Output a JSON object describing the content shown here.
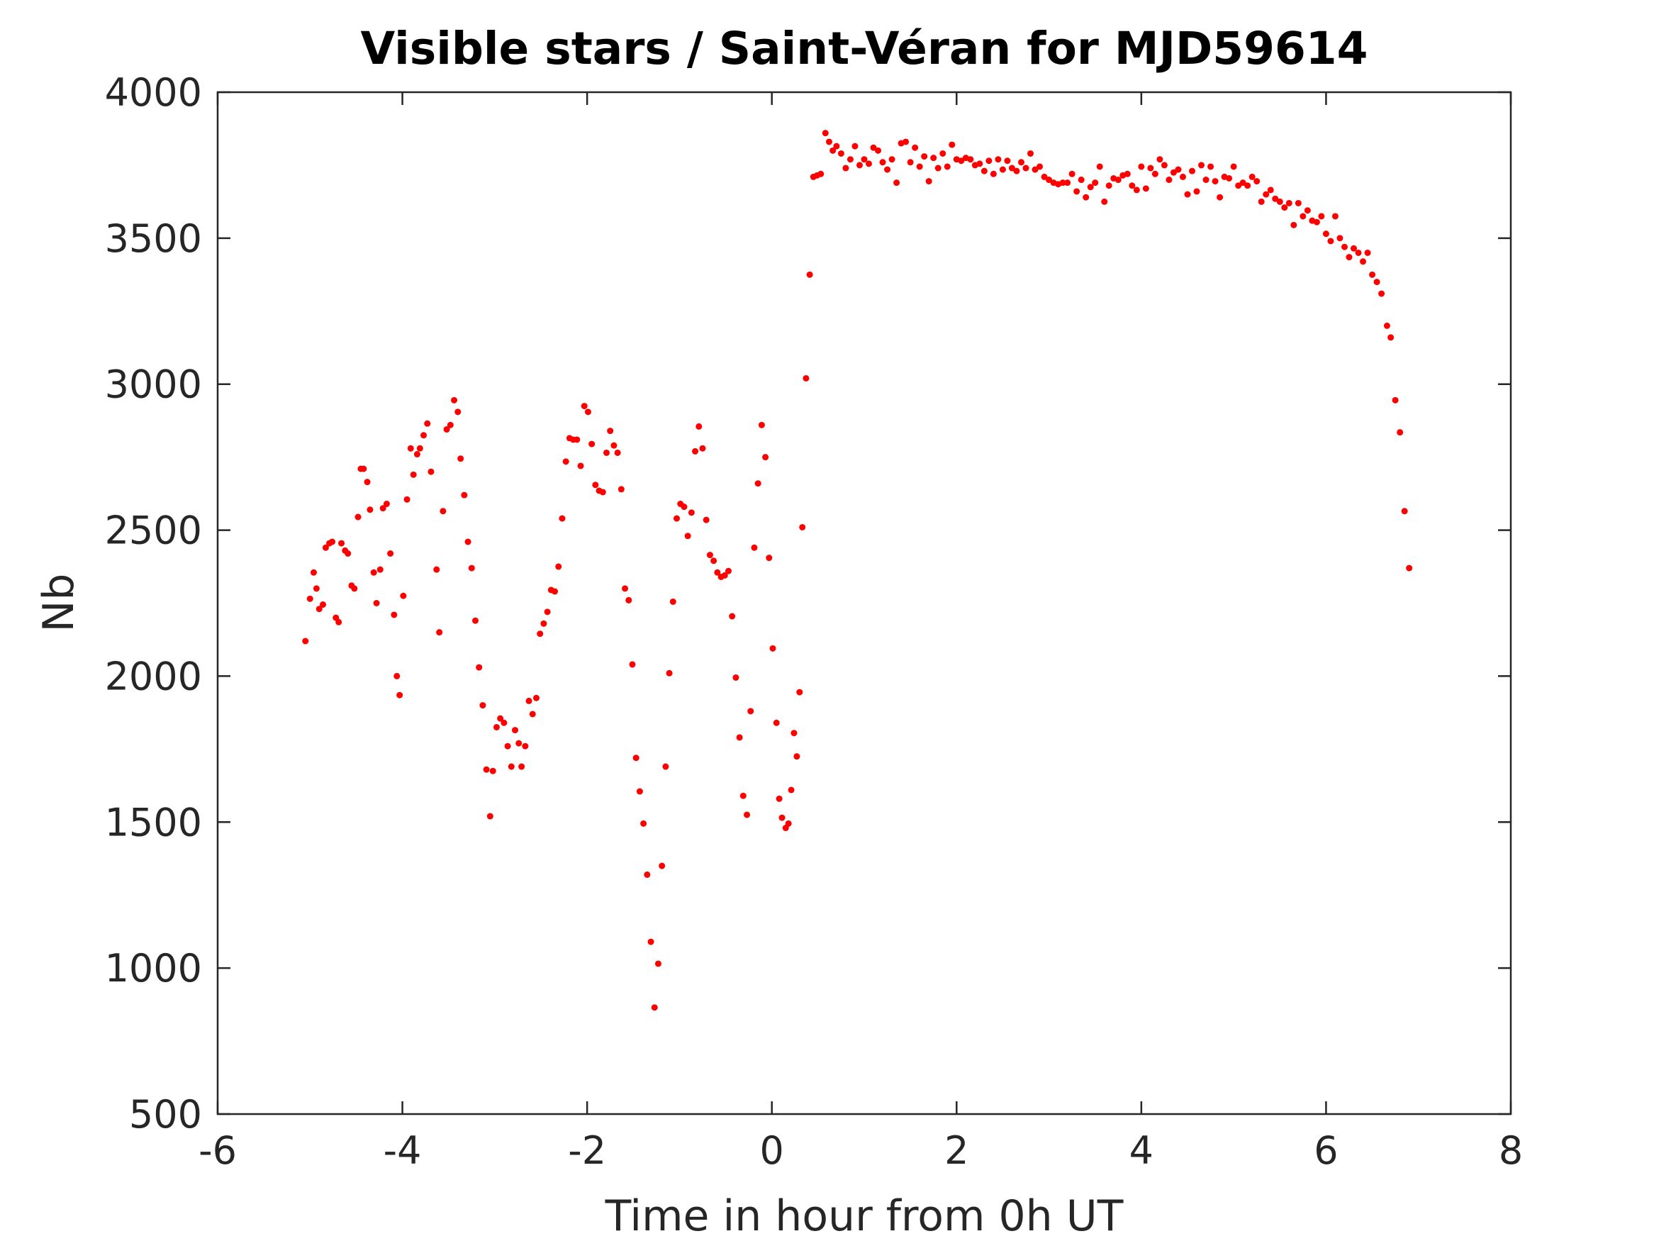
{
  "chart_data": {
    "type": "scatter",
    "title": "Visible stars / Saint-Véran for MJD59614",
    "xlabel": "Time in hour from 0h UT",
    "ylabel": "Nb",
    "xlim": [
      -6,
      8
    ],
    "ylim": [
      500,
      4000
    ],
    "xticks": [
      -6,
      -4,
      -2,
      0,
      2,
      4,
      6,
      8
    ],
    "yticks": [
      500,
      1000,
      1500,
      2000,
      2500,
      3000,
      3500,
      4000
    ],
    "grid": false,
    "legend": "none",
    "marker_color": "#ff0000",
    "series": [
      {
        "points": [
          [
            -5.05,
            2120
          ],
          [
            -5.0,
            2265
          ],
          [
            -4.96,
            2355
          ],
          [
            -4.93,
            2300
          ],
          [
            -4.9,
            2230
          ],
          [
            -4.86,
            2245
          ],
          [
            -4.83,
            2440
          ],
          [
            -4.79,
            2455
          ],
          [
            -4.76,
            2460
          ],
          [
            -4.72,
            2200
          ],
          [
            -4.69,
            2185
          ],
          [
            -4.66,
            2455
          ],
          [
            -4.62,
            2430
          ],
          [
            -4.59,
            2420
          ],
          [
            -4.55,
            2310
          ],
          [
            -4.52,
            2300
          ],
          [
            -4.48,
            2545
          ],
          [
            -4.45,
            2710
          ],
          [
            -4.42,
            2710
          ],
          [
            -4.38,
            2665
          ],
          [
            -4.35,
            2570
          ],
          [
            -4.31,
            2355
          ],
          [
            -4.28,
            2250
          ],
          [
            -4.24,
            2365
          ],
          [
            -4.21,
            2575
          ],
          [
            -4.17,
            2590
          ],
          [
            -4.13,
            2420
          ],
          [
            -4.09,
            2210
          ],
          [
            -4.06,
            2000
          ],
          [
            -4.03,
            1935
          ],
          [
            -3.99,
            2275
          ],
          [
            -3.95,
            2605
          ],
          [
            -3.91,
            2780
          ],
          [
            -3.88,
            2690
          ],
          [
            -3.84,
            2760
          ],
          [
            -3.81,
            2780
          ],
          [
            -3.77,
            2825
          ],
          [
            -3.73,
            2865
          ],
          [
            -3.69,
            2700
          ],
          [
            -3.63,
            2365
          ],
          [
            -3.6,
            2150
          ],
          [
            -3.56,
            2565
          ],
          [
            -3.52,
            2845
          ],
          [
            -3.48,
            2860
          ],
          [
            -3.44,
            2945
          ],
          [
            -3.4,
            2905
          ],
          [
            -3.37,
            2745
          ],
          [
            -3.33,
            2620
          ],
          [
            -3.29,
            2460
          ],
          [
            -3.25,
            2370
          ],
          [
            -3.21,
            2190
          ],
          [
            -3.17,
            2030
          ],
          [
            -3.13,
            1900
          ],
          [
            -3.09,
            1680
          ],
          [
            -3.05,
            1520
          ],
          [
            -3.02,
            1675
          ],
          [
            -2.98,
            1825
          ],
          [
            -2.94,
            1855
          ],
          [
            -2.9,
            1840
          ],
          [
            -2.86,
            1760
          ],
          [
            -2.82,
            1690
          ],
          [
            -2.78,
            1815
          ],
          [
            -2.74,
            1770
          ],
          [
            -2.71,
            1690
          ],
          [
            -2.67,
            1760
          ],
          [
            -2.63,
            1915
          ],
          [
            -2.59,
            1870
          ],
          [
            -2.55,
            1925
          ],
          [
            -2.51,
            2145
          ],
          [
            -2.47,
            2180
          ],
          [
            -2.43,
            2220
          ],
          [
            -2.39,
            2295
          ],
          [
            -2.35,
            2290
          ],
          [
            -2.31,
            2375
          ],
          [
            -2.27,
            2540
          ],
          [
            -2.23,
            2735
          ],
          [
            -2.19,
            2815
          ],
          [
            -2.15,
            2810
          ],
          [
            -2.11,
            2810
          ],
          [
            -2.07,
            2720
          ],
          [
            -2.03,
            2925
          ],
          [
            -1.99,
            2905
          ],
          [
            -1.95,
            2795
          ],
          [
            -1.91,
            2655
          ],
          [
            -1.87,
            2635
          ],
          [
            -1.83,
            2630
          ],
          [
            -1.79,
            2765
          ],
          [
            -1.75,
            2840
          ],
          [
            -1.71,
            2790
          ],
          [
            -1.67,
            2765
          ],
          [
            -1.63,
            2640
          ],
          [
            -1.59,
            2300
          ],
          [
            -1.55,
            2260
          ],
          [
            -1.51,
            2040
          ],
          [
            -1.47,
            1720
          ],
          [
            -1.43,
            1605
          ],
          [
            -1.39,
            1495
          ],
          [
            -1.35,
            1320
          ],
          [
            -1.31,
            1090
          ],
          [
            -1.27,
            865
          ],
          [
            -1.23,
            1015
          ],
          [
            -1.19,
            1350
          ],
          [
            -1.15,
            1690
          ],
          [
            -1.11,
            2010
          ],
          [
            -1.07,
            2255
          ],
          [
            -1.03,
            2540
          ],
          [
            -0.99,
            2590
          ],
          [
            -0.95,
            2580
          ],
          [
            -0.91,
            2480
          ],
          [
            -0.87,
            2560
          ],
          [
            -0.83,
            2770
          ],
          [
            -0.79,
            2855
          ],
          [
            -0.75,
            2780
          ],
          [
            -0.71,
            2535
          ],
          [
            -0.67,
            2415
          ],
          [
            -0.63,
            2395
          ],
          [
            -0.59,
            2355
          ],
          [
            -0.55,
            2340
          ],
          [
            -0.51,
            2345
          ],
          [
            -0.47,
            2360
          ],
          [
            -0.43,
            2205
          ],
          [
            -0.39,
            1995
          ],
          [
            -0.35,
            1790
          ],
          [
            -0.31,
            1590
          ],
          [
            -0.27,
            1525
          ],
          [
            -0.23,
            1880
          ],
          [
            -0.19,
            2440
          ],
          [
            -0.15,
            2660
          ],
          [
            -0.11,
            2860
          ],
          [
            -0.07,
            2750
          ],
          [
            -0.03,
            2405
          ],
          [
            0.01,
            2095
          ],
          [
            0.05,
            1840
          ],
          [
            0.08,
            1580
          ],
          [
            0.11,
            1515
          ],
          [
            0.15,
            1480
          ],
          [
            0.18,
            1495
          ],
          [
            0.21,
            1610
          ],
          [
            0.24,
            1805
          ],
          [
            0.27,
            1725
          ],
          [
            0.3,
            1945
          ],
          [
            0.33,
            2510
          ],
          [
            0.37,
            3020
          ],
          [
            0.41,
            3375
          ],
          [
            0.45,
            3710
          ],
          [
            0.49,
            3715
          ],
          [
            0.53,
            3720
          ],
          [
            0.58,
            3860
          ],
          [
            0.62,
            3830
          ],
          [
            0.66,
            3800
          ],
          [
            0.7,
            3815
          ],
          [
            0.75,
            3790
          ],
          [
            0.8,
            3740
          ],
          [
            0.85,
            3770
          ],
          [
            0.9,
            3815
          ],
          [
            0.95,
            3750
          ],
          [
            1.0,
            3770
          ],
          [
            1.05,
            3755
          ],
          [
            1.1,
            3810
          ],
          [
            1.15,
            3800
          ],
          [
            1.2,
            3760
          ],
          [
            1.25,
            3735
          ],
          [
            1.3,
            3770
          ],
          [
            1.35,
            3690
          ],
          [
            1.4,
            3825
          ],
          [
            1.45,
            3830
          ],
          [
            1.5,
            3760
          ],
          [
            1.55,
            3810
          ],
          [
            1.6,
            3745
          ],
          [
            1.65,
            3780
          ],
          [
            1.7,
            3695
          ],
          [
            1.75,
            3775
          ],
          [
            1.8,
            3740
          ],
          [
            1.85,
            3790
          ],
          [
            1.9,
            3745
          ],
          [
            1.95,
            3820
          ],
          [
            2.0,
            3770
          ],
          [
            2.05,
            3765
          ],
          [
            2.1,
            3775
          ],
          [
            2.15,
            3770
          ],
          [
            2.2,
            3750
          ],
          [
            2.25,
            3755
          ],
          [
            2.3,
            3730
          ],
          [
            2.35,
            3765
          ],
          [
            2.4,
            3720
          ],
          [
            2.45,
            3770
          ],
          [
            2.5,
            3735
          ],
          [
            2.55,
            3765
          ],
          [
            2.6,
            3740
          ],
          [
            2.65,
            3730
          ],
          [
            2.7,
            3760
          ],
          [
            2.75,
            3740
          ],
          [
            2.8,
            3790
          ],
          [
            2.85,
            3735
          ],
          [
            2.9,
            3745
          ],
          [
            2.95,
            3710
          ],
          [
            3.0,
            3700
          ],
          [
            3.05,
            3690
          ],
          [
            3.1,
            3685
          ],
          [
            3.15,
            3690
          ],
          [
            3.2,
            3690
          ],
          [
            3.25,
            3720
          ],
          [
            3.3,
            3660
          ],
          [
            3.35,
            3700
          ],
          [
            3.4,
            3640
          ],
          [
            3.45,
            3675
          ],
          [
            3.5,
            3690
          ],
          [
            3.55,
            3745
          ],
          [
            3.6,
            3625
          ],
          [
            3.65,
            3680
          ],
          [
            3.7,
            3705
          ],
          [
            3.75,
            3700
          ],
          [
            3.8,
            3715
          ],
          [
            3.85,
            3720
          ],
          [
            3.9,
            3680
          ],
          [
            3.95,
            3665
          ],
          [
            4.0,
            3745
          ],
          [
            4.05,
            3670
          ],
          [
            4.1,
            3740
          ],
          [
            4.15,
            3720
          ],
          [
            4.2,
            3770
          ],
          [
            4.25,
            3750
          ],
          [
            4.3,
            3700
          ],
          [
            4.35,
            3725
          ],
          [
            4.4,
            3735
          ],
          [
            4.45,
            3710
          ],
          [
            4.5,
            3650
          ],
          [
            4.55,
            3730
          ],
          [
            4.6,
            3660
          ],
          [
            4.65,
            3750
          ],
          [
            4.7,
            3700
          ],
          [
            4.75,
            3745
          ],
          [
            4.8,
            3695
          ],
          [
            4.85,
            3640
          ],
          [
            4.9,
            3710
          ],
          [
            4.95,
            3705
          ],
          [
            5.0,
            3745
          ],
          [
            5.05,
            3680
          ],
          [
            5.1,
            3690
          ],
          [
            5.15,
            3680
          ],
          [
            5.2,
            3710
          ],
          [
            5.25,
            3695
          ],
          [
            5.3,
            3625
          ],
          [
            5.35,
            3650
          ],
          [
            5.4,
            3665
          ],
          [
            5.45,
            3635
          ],
          [
            5.5,
            3625
          ],
          [
            5.55,
            3605
          ],
          [
            5.6,
            3620
          ],
          [
            5.65,
            3545
          ],
          [
            5.7,
            3620
          ],
          [
            5.75,
            3575
          ],
          [
            5.8,
            3595
          ],
          [
            5.85,
            3560
          ],
          [
            5.9,
            3555
          ],
          [
            5.95,
            3575
          ],
          [
            6.0,
            3515
          ],
          [
            6.05,
            3490
          ],
          [
            6.1,
            3575
          ],
          [
            6.15,
            3500
          ],
          [
            6.2,
            3470
          ],
          [
            6.25,
            3435
          ],
          [
            6.3,
            3465
          ],
          [
            6.35,
            3450
          ],
          [
            6.4,
            3420
          ],
          [
            6.45,
            3450
          ],
          [
            6.5,
            3375
          ],
          [
            6.55,
            3350
          ],
          [
            6.6,
            3310
          ],
          [
            6.66,
            3200
          ],
          [
            6.7,
            3160
          ],
          [
            6.75,
            2945
          ],
          [
            6.8,
            2835
          ],
          [
            6.85,
            2565
          ],
          [
            6.9,
            2370
          ]
        ]
      }
    ]
  }
}
